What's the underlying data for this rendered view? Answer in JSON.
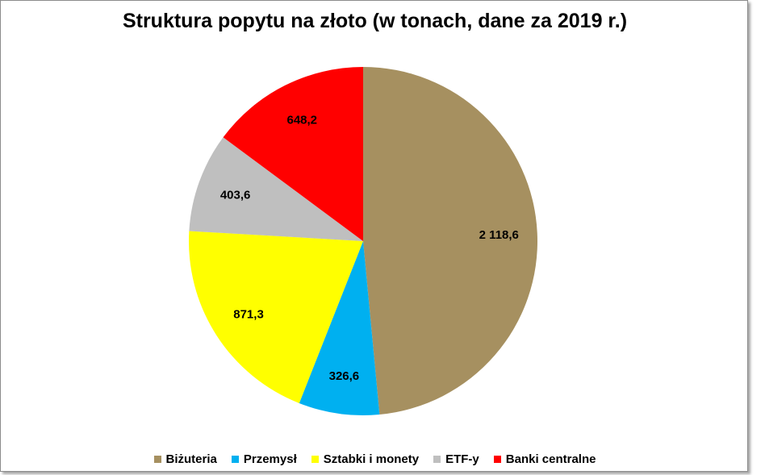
{
  "chart_data": {
    "type": "pie",
    "title": "Struktura popytu na złoto (w tonach, dane za 2019 r.)",
    "categories": [
      "Biżuteria",
      "Przemysł",
      "Sztabki i monety",
      "ETF-y",
      "Banki centralne"
    ],
    "values": [
      2118.6,
      326.6,
      871.3,
      403.6,
      648.2
    ],
    "value_labels": [
      "2 118,6",
      "326,6",
      "871,3",
      "403,6",
      "648,2"
    ],
    "colors": [
      "#A69060",
      "#00B0F0",
      "#FFFF00",
      "#BFBFBF",
      "#FF0000"
    ],
    "legend_position": "bottom"
  }
}
